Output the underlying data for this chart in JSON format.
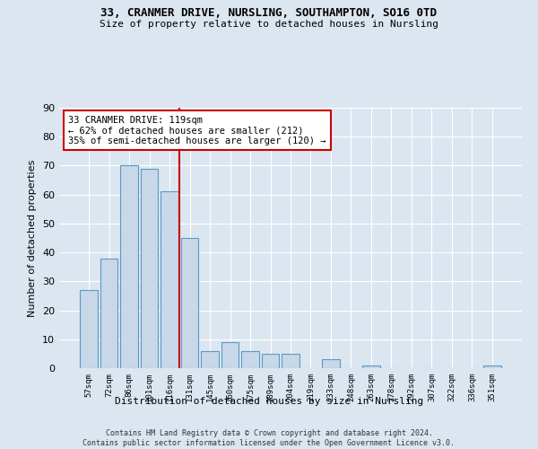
{
  "title1": "33, CRANMER DRIVE, NURSLING, SOUTHAMPTON, SO16 0TD",
  "title2": "Size of property relative to detached houses in Nursling",
  "xlabel": "Distribution of detached houses by size in Nursling",
  "ylabel": "Number of detached properties",
  "categories": [
    "57sqm",
    "72sqm",
    "86sqm",
    "101sqm",
    "116sqm",
    "131sqm",
    "145sqm",
    "160sqm",
    "175sqm",
    "189sqm",
    "204sqm",
    "219sqm",
    "233sqm",
    "248sqm",
    "263sqm",
    "278sqm",
    "292sqm",
    "307sqm",
    "322sqm",
    "336sqm",
    "351sqm"
  ],
  "values": [
    27,
    38,
    70,
    69,
    61,
    45,
    6,
    9,
    6,
    5,
    5,
    0,
    3,
    0,
    1,
    0,
    0,
    0,
    0,
    0,
    1
  ],
  "bar_color": "#c8d8e8",
  "bar_edge_color": "#5a9ac8",
  "vline_x": 4.5,
  "vline_color": "#cc0000",
  "annotation_text": "33 CRANMER DRIVE: 119sqm\n← 62% of detached houses are smaller (212)\n35% of semi-detached houses are larger (120) →",
  "annotation_box_color": "#ffffff",
  "annotation_box_edge": "#cc0000",
  "ylim": [
    0,
    90
  ],
  "yticks": [
    0,
    10,
    20,
    30,
    40,
    50,
    60,
    70,
    80,
    90
  ],
  "footer": "Contains HM Land Registry data © Crown copyright and database right 2024.\nContains public sector information licensed under the Open Government Licence v3.0.",
  "bg_color": "#dce6f0",
  "plot_bg_color": "#dce6f0"
}
